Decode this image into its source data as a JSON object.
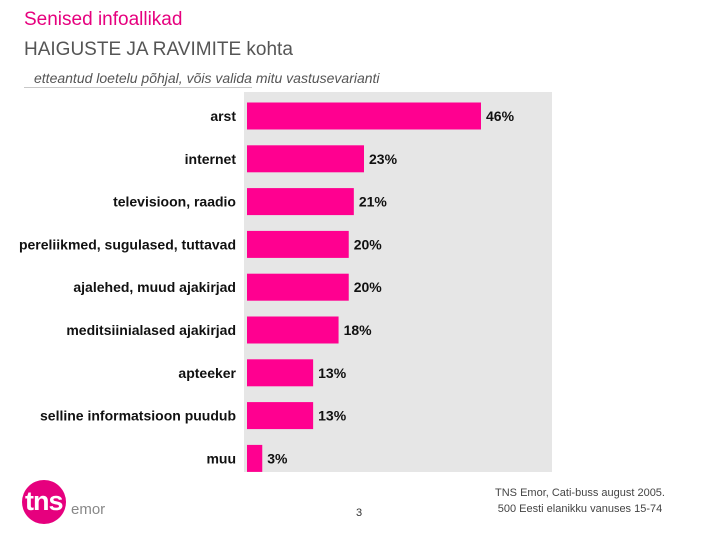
{
  "header": {
    "title_line1": "Senised infoallikad",
    "title_line2": "HAIGUSTE JA RAVIMITE kohta",
    "subtitle": "etteantud loetelu põhjal, võis valida mitu vastusevarianti"
  },
  "chart_data": {
    "type": "bar",
    "orientation": "horizontal",
    "categories": [
      "arst",
      "internet",
      "televisioon, raadio",
      "pereliikmed, sugulased, tuttavad",
      "ajalehed, muud ajakirjad",
      "meditsiinialased ajakirjad",
      "apteeker",
      "selline informatsioon puudub",
      "muu"
    ],
    "values": [
      46,
      23,
      21,
      20,
      20,
      18,
      13,
      13,
      3
    ],
    "data_labels": [
      "46%",
      "23%",
      "21%",
      "20%",
      "20%",
      "18%",
      "13%",
      "13%",
      "3%"
    ],
    "unit": "%",
    "xlim": [
      0,
      60
    ],
    "bar_color": "#ff0090",
    "plot_background": "#e6e6e6",
    "grid": false,
    "legend": "none"
  },
  "footer": {
    "logo_text": "tns",
    "logo_suffix": "emor",
    "page_number": "3",
    "source_line1": "TNS Emor, Cati-buss august 2005.",
    "source_line2": "500 Eesti elanikku vanuses 15-74",
    "brand_color": "#e6007e"
  }
}
